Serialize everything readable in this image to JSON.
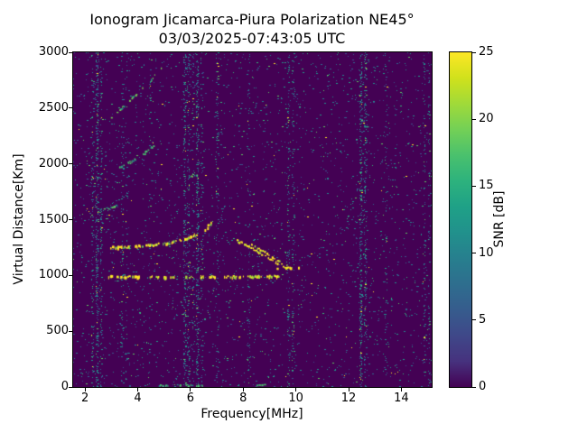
{
  "chart_data": {
    "type": "heatmap",
    "title": "Ionogram Jicamarca-Piura Polarization NE45°",
    "subtitle": "03/03/2025-07:43:05 UTC",
    "xlabel": "Frequency[MHz]",
    "ylabel": "Virtual Distance[Km]",
    "xlim": [
      1.55,
      15.15
    ],
    "ylim": [
      0,
      3000
    ],
    "xticks": [
      2,
      4,
      6,
      8,
      10,
      12,
      14
    ],
    "yticks": [
      0,
      500,
      1000,
      1500,
      2000,
      2500,
      3000
    ],
    "grid": false,
    "background_color": "#440154",
    "colorbar": {
      "label": "SNR [dB]",
      "min": 0,
      "max": 25,
      "ticks": [
        0,
        5,
        10,
        15,
        20,
        25
      ],
      "colormap": "viridis",
      "gradient_stops": [
        "#440154",
        "#46327e",
        "#3f4889",
        "#365c8d",
        "#2e6e8e",
        "#277f8e",
        "#21918c",
        "#1fa187",
        "#2db27d",
        "#4ac16d",
        "#73d056",
        "#a0da39",
        "#d0e11c",
        "#fde725"
      ]
    },
    "noise": {
      "base_density": 0.018,
      "palette": [
        "#3b528b",
        "#31688e",
        "#26828e",
        "#21918c",
        "#1f9e89",
        "#35b779",
        "#5ec962",
        "#fde725"
      ],
      "palette_weights": [
        0.2,
        0.2,
        0.18,
        0.16,
        0.11,
        0.07,
        0.05,
        0.03
      ],
      "stripes": [
        {
          "f": 2.27,
          "d": 0.1,
          "w": 0.04
        },
        {
          "f": 2.45,
          "d": 0.22,
          "w": 0.05
        },
        {
          "f": 2.6,
          "d": 0.16,
          "w": 0.04
        },
        {
          "f": 3.4,
          "d": 0.09,
          "w": 0.04
        },
        {
          "f": 3.55,
          "d": 0.07,
          "w": 0.04
        },
        {
          "f": 4.45,
          "d": 0.07,
          "w": 0.04
        },
        {
          "f": 5.75,
          "d": 0.17,
          "w": 0.05
        },
        {
          "f": 5.9,
          "d": 0.11,
          "w": 0.04
        },
        {
          "f": 6.1,
          "d": 0.09,
          "w": 0.04
        },
        {
          "f": 6.25,
          "d": 0.2,
          "w": 0.05
        },
        {
          "f": 6.42,
          "d": 0.1,
          "w": 0.04
        },
        {
          "f": 7.0,
          "d": 0.12,
          "w": 0.04
        },
        {
          "f": 8.2,
          "d": 0.06,
          "w": 0.04
        },
        {
          "f": 9.7,
          "d": 0.12,
          "w": 0.04
        },
        {
          "f": 9.88,
          "d": 0.09,
          "w": 0.04
        },
        {
          "f": 12.45,
          "d": 0.22,
          "w": 0.05
        },
        {
          "f": 12.62,
          "d": 0.15,
          "w": 0.04
        },
        {
          "f": 13.4,
          "d": 0.06,
          "w": 0.04
        },
        {
          "f": 14.85,
          "d": 0.12,
          "w": 0.04
        },
        {
          "f": 15.02,
          "d": 0.1,
          "w": 0.04
        }
      ]
    },
    "traces": [
      {
        "name": "F-region flat echo 980km",
        "points": [
          [
            2.85,
            985
          ],
          [
            5.0,
            980
          ],
          [
            7.2,
            982
          ],
          [
            9.35,
            988
          ]
        ],
        "color": "#fde725",
        "alt_color": "#a0da39",
        "alt_frac": 0.25,
        "thickness": 3,
        "gap": 0.3
      },
      {
        "name": "O-mode cusp trace",
        "points": [
          [
            2.95,
            1245
          ],
          [
            3.6,
            1250
          ],
          [
            4.3,
            1262
          ],
          [
            5.0,
            1282
          ],
          [
            5.6,
            1310
          ],
          [
            6.1,
            1350
          ],
          [
            6.5,
            1405
          ],
          [
            6.75,
            1465
          ],
          [
            6.95,
            1545
          ]
        ],
        "color": "#fde725",
        "alt_color": "#73d056",
        "alt_frac": 0.3,
        "thickness": 3,
        "gap": 0.3
      },
      {
        "name": "echo segment 1600km",
        "points": [
          [
            2.6,
            1590
          ],
          [
            2.95,
            1608
          ],
          [
            3.35,
            1640
          ]
        ],
        "color": "#5ec962",
        "alt_color": "#21918c",
        "alt_frac": 0.4,
        "thickness": 2,
        "gap": 0.35
      },
      {
        "name": "second hop trace",
        "points": [
          [
            3.2,
            1958
          ],
          [
            3.6,
            2000
          ],
          [
            4.0,
            2052
          ],
          [
            4.35,
            2112
          ],
          [
            4.62,
            2170
          ]
        ],
        "color": "#4ac16d",
        "alt_color": "#21918c",
        "alt_frac": 0.35,
        "thickness": 2,
        "gap": 0.35
      },
      {
        "name": "third hop trace",
        "points": [
          [
            3.0,
            2415
          ],
          [
            3.4,
            2500
          ],
          [
            3.8,
            2590
          ],
          [
            4.2,
            2682
          ],
          [
            4.6,
            2778
          ],
          [
            4.88,
            2858
          ]
        ],
        "color": "#73d056",
        "alt_color": "#1fa187",
        "alt_frac": 0.35,
        "thickness": 2,
        "gap": 0.35
      },
      {
        "name": "X-mode descending outer",
        "points": [
          [
            7.75,
            1312
          ],
          [
            8.1,
            1266
          ],
          [
            8.5,
            1215
          ],
          [
            8.9,
            1160
          ],
          [
            9.3,
            1105
          ],
          [
            9.62,
            1068
          ]
        ],
        "color": "#fde725",
        "alt_color": "#a0da39",
        "alt_frac": 0.25,
        "thickness": 2,
        "gap": 0.3
      },
      {
        "name": "X-mode descending inner",
        "points": [
          [
            8.3,
            1272
          ],
          [
            8.65,
            1226
          ],
          [
            9.0,
            1176
          ],
          [
            9.35,
            1126
          ],
          [
            9.66,
            1088
          ]
        ],
        "color": "#fde725",
        "alt_color": "#a0da39",
        "alt_frac": 0.25,
        "thickness": 2,
        "gap": 0.3
      },
      {
        "name": "flat echo 1060km",
        "points": [
          [
            9.3,
            1062
          ],
          [
            10.05,
            1058
          ]
        ],
        "color": "#fde725",
        "alt_color": "#d0e11c",
        "alt_frac": 0.3,
        "thickness": 3,
        "gap": 0.25
      },
      {
        "name": "short echo 1890km",
        "points": [
          [
            5.95,
            1888
          ],
          [
            6.3,
            1893
          ]
        ],
        "color": "#73d056",
        "alt_color": "#21918c",
        "alt_frac": 0.3,
        "thickness": 2,
        "gap": 0.3
      },
      {
        "name": "faint echo 12.5MHz 2320km",
        "points": [
          [
            12.25,
            2320
          ],
          [
            12.7,
            2328
          ]
        ],
        "color": "#21918c",
        "alt_color": "#2db27d",
        "alt_frac": 0.4,
        "thickness": 2,
        "gap": 0.45
      },
      {
        "name": "bottom edge interference",
        "points": [
          [
            4.8,
            14
          ],
          [
            6.45,
            14
          ]
        ],
        "color": "#4ac16d",
        "alt_color": "#21918c",
        "alt_frac": 0.4,
        "thickness": 2,
        "gap": 0.5
      },
      {
        "name": "bottom edge interference 2",
        "points": [
          [
            8.5,
            16
          ],
          [
            8.85,
            16
          ]
        ],
        "color": "#4ac16d",
        "alt_color": "#21918c",
        "alt_frac": 0.4,
        "thickness": 2,
        "gap": 0.4
      }
    ]
  }
}
